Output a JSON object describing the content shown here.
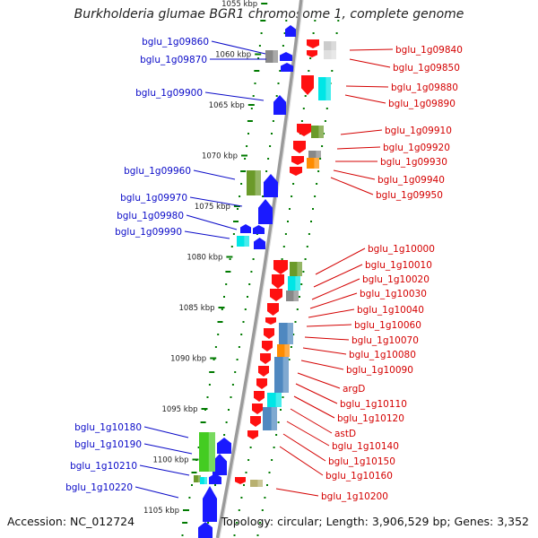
{
  "title": "Burkholderia glumae BGR1 chromosome 1, complete genome",
  "footer": {
    "accession": "Accession: NC_012724",
    "topology": "Topology: circular; Length: 3,906,529 bp; Genes: 3,352"
  },
  "colors": {
    "left_strand_label": "#0a0ac8",
    "right_strand_label": "#d40000",
    "forward_gene": "#1a1aff",
    "reverse_gene": "#ff1010",
    "backbone": "#9a9a9a",
    "ticks": "#007a00",
    "cog_green": "#6b9a2a",
    "cog_grey": "#888888",
    "cog_cyan": "#00e6e6",
    "cog_orange": "#ff8c00",
    "cog_steelblue": "#4f88c0",
    "cog_brightgreen": "#44cc22",
    "cog_khaki": "#b8b070"
  },
  "kbp_labels": [
    "1055 kbp",
    "1060 kbp",
    "1065 kbp",
    "1070 kbp",
    "1075 kbp",
    "1080 kbp",
    "1085 kbp",
    "1090 kbp",
    "1095 kbp",
    "1100 kbp",
    "1105 kbp"
  ],
  "left_labels": [
    "bglu_1g09860",
    "bglu_1g09870",
    "bglu_1g09900",
    "bglu_1g09960",
    "bglu_1g09970",
    "bglu_1g09980",
    "bglu_1g09990",
    "bglu_1g10180",
    "bglu_1g10190",
    "bglu_1g10210",
    "bglu_1g10220"
  ],
  "right_labels": [
    "bglu_1g09840",
    "bglu_1g09850",
    "bglu_1g09880",
    "bglu_1g09890",
    "bglu_1g09910",
    "bglu_1g09920",
    "bglu_1g09930",
    "bglu_1g09940",
    "bglu_1g09950",
    "bglu_1g10000",
    "bglu_1g10010",
    "bglu_1g10020",
    "bglu_1g10030",
    "bglu_1g10040",
    "bglu_1g10060",
    "bglu_1g10070",
    "bglu_1g10080",
    "bglu_1g10090",
    "argD",
    "bglu_1g10110",
    "bglu_1g10120",
    "astD",
    "bglu_1g10140",
    "bglu_1g10150",
    "bglu_1g10160",
    "bglu_1g10200"
  ]
}
